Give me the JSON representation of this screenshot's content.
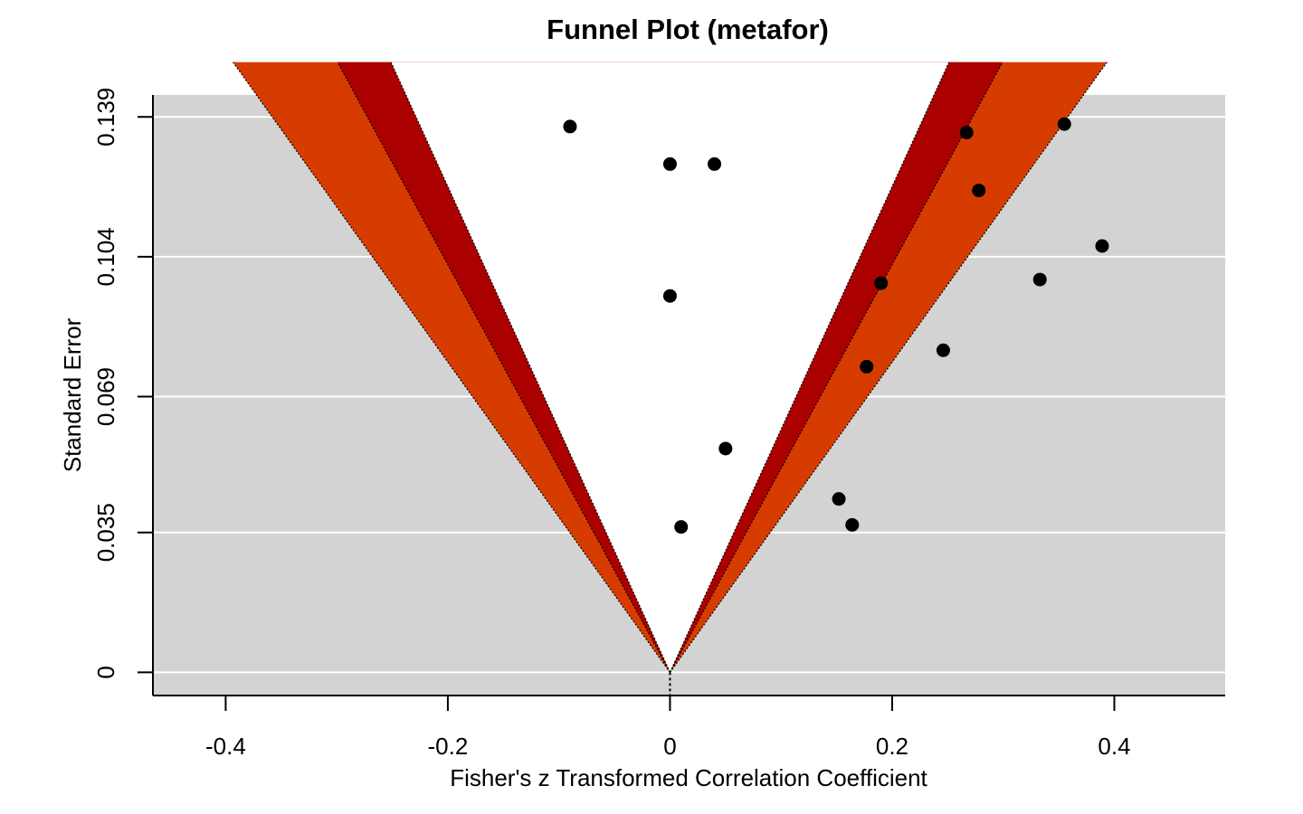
{
  "chart_data": {
    "type": "scatter",
    "title": "Funnel Plot (metafor)",
    "xlabel": "Fisher's z Transformed Correlation Coefficient",
    "ylabel": "Standard Error",
    "xlim": [
      -0.4655,
      0.4998
    ],
    "ylim": [
      0.1445,
      -0.0058
    ],
    "x_ticks": [
      -0.4,
      -0.2,
      0,
      0.2,
      0.4
    ],
    "x_tick_labels": [
      "-0.4",
      "-0.2",
      "0",
      "0.2",
      "0.4"
    ],
    "y_ticks": [
      0,
      0.035,
      0.069,
      0.104,
      0.139
    ],
    "y_tick_labels": [
      "0",
      "0.035",
      "0.069",
      "0.104",
      "0.139"
    ],
    "y_reversed": true,
    "grid": "horizontal",
    "reference_line": 0,
    "contour_levels": [
      0.9,
      0.95,
      0.99
    ],
    "contour_z": [
      1.645,
      1.96,
      2.576
    ],
    "colors": {
      "background": "#d3d3d3",
      "grid": "#ffffff",
      "contour_inner": "#ffffff",
      "contour_middle": "#aa0000",
      "contour_outer": "#d63c00",
      "points": "#000000"
    },
    "points": [
      {
        "x": 0.01,
        "y": 0.0364
      },
      {
        "x": 0.164,
        "y": 0.0369
      },
      {
        "x": 0.152,
        "y": 0.0434
      },
      {
        "x": 0.05,
        "y": 0.056
      },
      {
        "x": 0.177,
        "y": 0.0765
      },
      {
        "x": 0.246,
        "y": 0.0806
      },
      {
        "x": 0.0,
        "y": 0.0942
      },
      {
        "x": 0.19,
        "y": 0.0974
      },
      {
        "x": 0.333,
        "y": 0.0983
      },
      {
        "x": 0.389,
        "y": 0.1067
      },
      {
        "x": 0.278,
        "y": 0.1206
      },
      {
        "x": 0.0,
        "y": 0.1272
      },
      {
        "x": 0.04,
        "y": 0.1272
      },
      {
        "x": 0.267,
        "y": 0.1351
      },
      {
        "x": -0.09,
        "y": 0.1366
      },
      {
        "x": 0.355,
        "y": 0.1372
      }
    ]
  }
}
